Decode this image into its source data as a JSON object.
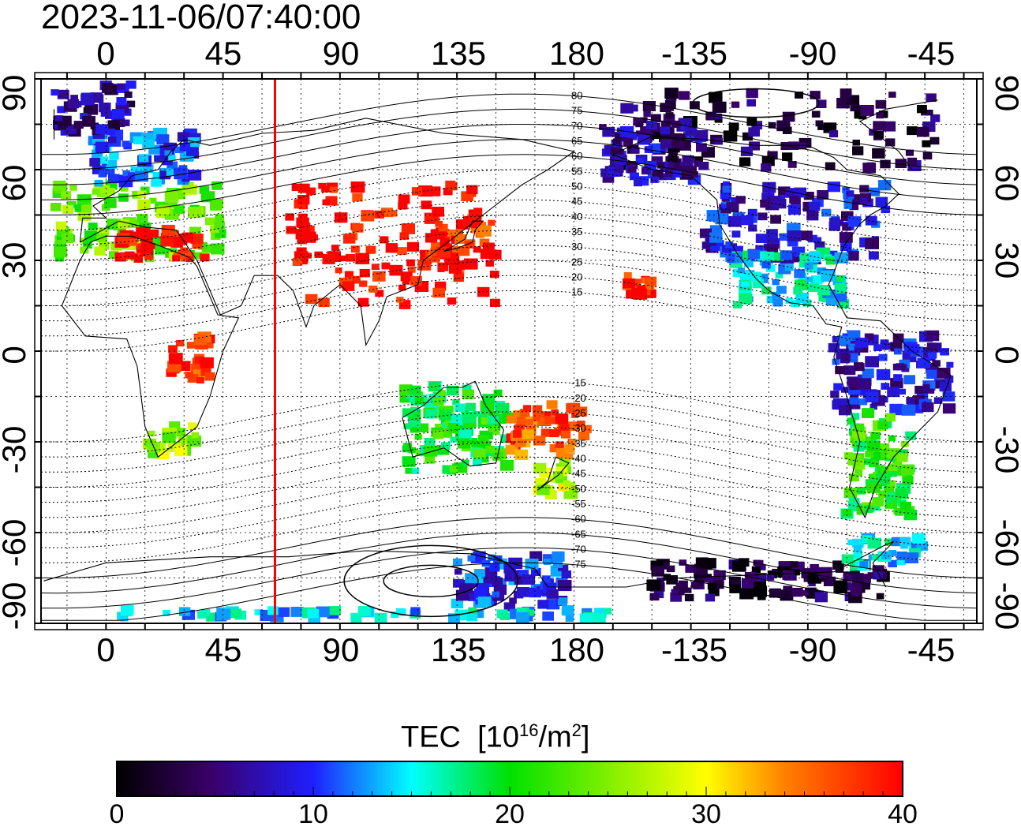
{
  "title": "2023-11-06/07:40:00",
  "axes": {
    "top_ticks": [
      "0",
      "45",
      "90",
      "135",
      "180",
      "-135",
      "-90",
      "-45"
    ],
    "bottom_ticks": [
      "0",
      "45",
      "90",
      "135",
      "180",
      "-135",
      "-90",
      "-45"
    ],
    "left_ticks": [
      "90",
      "60",
      "30",
      "0",
      "-30",
      "-60",
      "-90"
    ],
    "right_ticks": [
      "90",
      "60",
      "30",
      "0",
      "-30",
      "-60",
      "-90"
    ]
  },
  "map": {
    "lon_range_east_shift": [
      -25,
      335
    ],
    "lat_range": [
      -90,
      90
    ],
    "marker_longitude_deg": 65,
    "marker_color": "#ff0000",
    "contour_labels": [
      "80",
      "75",
      "70",
      "65",
      "60",
      "55",
      "50",
      "45",
      "40",
      "35",
      "30",
      "25",
      "20",
      "15",
      "-15",
      "-20",
      "-25",
      "-30",
      "-35",
      "-40",
      "-45",
      "-50",
      "-55",
      "-60",
      "-65",
      "-70",
      "-75"
    ],
    "tec_regions": [
      {
        "region": "Europe",
        "lon": [
          -20,
          45
        ],
        "lat": [
          30,
          55
        ],
        "tec": 24
      },
      {
        "region": "Europe-south",
        "lon": [
          5,
          40
        ],
        "lat": [
          30,
          40
        ],
        "tec": 40
      },
      {
        "region": "Scandinavia",
        "lon": [
          -5,
          35
        ],
        "lat": [
          55,
          72
        ],
        "tec": 11
      },
      {
        "region": "Arctic-Atlantic",
        "lon": [
          -20,
          10
        ],
        "lat": [
          72,
          88
        ],
        "tec": 6
      },
      {
        "region": "Asia",
        "lon": [
          70,
          150
        ],
        "lat": [
          15,
          55
        ],
        "tec": 40
      },
      {
        "region": "Japan",
        "lon": [
          125,
          148
        ],
        "lat": [
          30,
          46
        ],
        "tec": 38
      },
      {
        "region": "Africa-central",
        "lon": [
          25,
          40
        ],
        "lat": [
          -10,
          5
        ],
        "tec": 38
      },
      {
        "region": "South-Africa",
        "lon": [
          15,
          35
        ],
        "lat": [
          -35,
          -25
        ],
        "tec": 26
      },
      {
        "region": "Australia",
        "lon": [
          115,
          155
        ],
        "lat": [
          -40,
          -12
        ],
        "tec": 20
      },
      {
        "region": "New-Zealand",
        "lon": [
          165,
          180
        ],
        "lat": [
          -48,
          -35
        ],
        "tec": 27
      },
      {
        "region": "Pacific-islands",
        "lon": [
          155,
          185
        ],
        "lat": [
          -35,
          -18
        ],
        "tec": 36
      },
      {
        "region": "Hawaii",
        "lon": [
          -160,
          -150
        ],
        "lat": [
          18,
          25
        ],
        "tec": 38
      },
      {
        "region": "North-America",
        "lon": [
          -130,
          -60
        ],
        "lat": [
          30,
          55
        ],
        "tec": 8
      },
      {
        "region": "North-America-south",
        "lon": [
          -120,
          -75
        ],
        "lat": [
          15,
          32
        ],
        "tec": 15
      },
      {
        "region": "Canada-Arctic",
        "lon": [
          -160,
          -40
        ],
        "lat": [
          60,
          85
        ],
        "tec": 3
      },
      {
        "region": "Alaska",
        "lon": [
          -170,
          -130
        ],
        "lat": [
          55,
          75
        ],
        "tec": 7
      },
      {
        "region": "South-America-north",
        "lon": [
          -80,
          -35
        ],
        "lat": [
          -20,
          5
        ],
        "tec": 8
      },
      {
        "region": "South-America-south",
        "lon": [
          -75,
          -50
        ],
        "lat": [
          -55,
          -20
        ],
        "tec": 21
      },
      {
        "region": "Antarctica-east",
        "lon": [
          135,
          180
        ],
        "lat": [
          -85,
          -68
        ],
        "tec": 10
      },
      {
        "region": "Antarctica-west",
        "lon": [
          -150,
          -60
        ],
        "lat": [
          -82,
          -70
        ],
        "tec": 3
      },
      {
        "region": "Antarctic-peninsula",
        "lon": [
          -75,
          -45
        ],
        "lat": [
          -72,
          -62
        ],
        "tec": 15
      },
      {
        "region": "South-pole-band",
        "lon": [
          0,
          200
        ],
        "lat": [
          -89,
          -86
        ],
        "tec": 14
      }
    ]
  },
  "colorbar": {
    "title": "TEC",
    "unit_base": "[10",
    "unit_exp": "16",
    "unit_mid": "/m",
    "unit_exp2": "2",
    "unit_end": "]",
    "ticks": [
      "0",
      "10",
      "20",
      "30",
      "40"
    ],
    "range": [
      0,
      40
    ]
  }
}
